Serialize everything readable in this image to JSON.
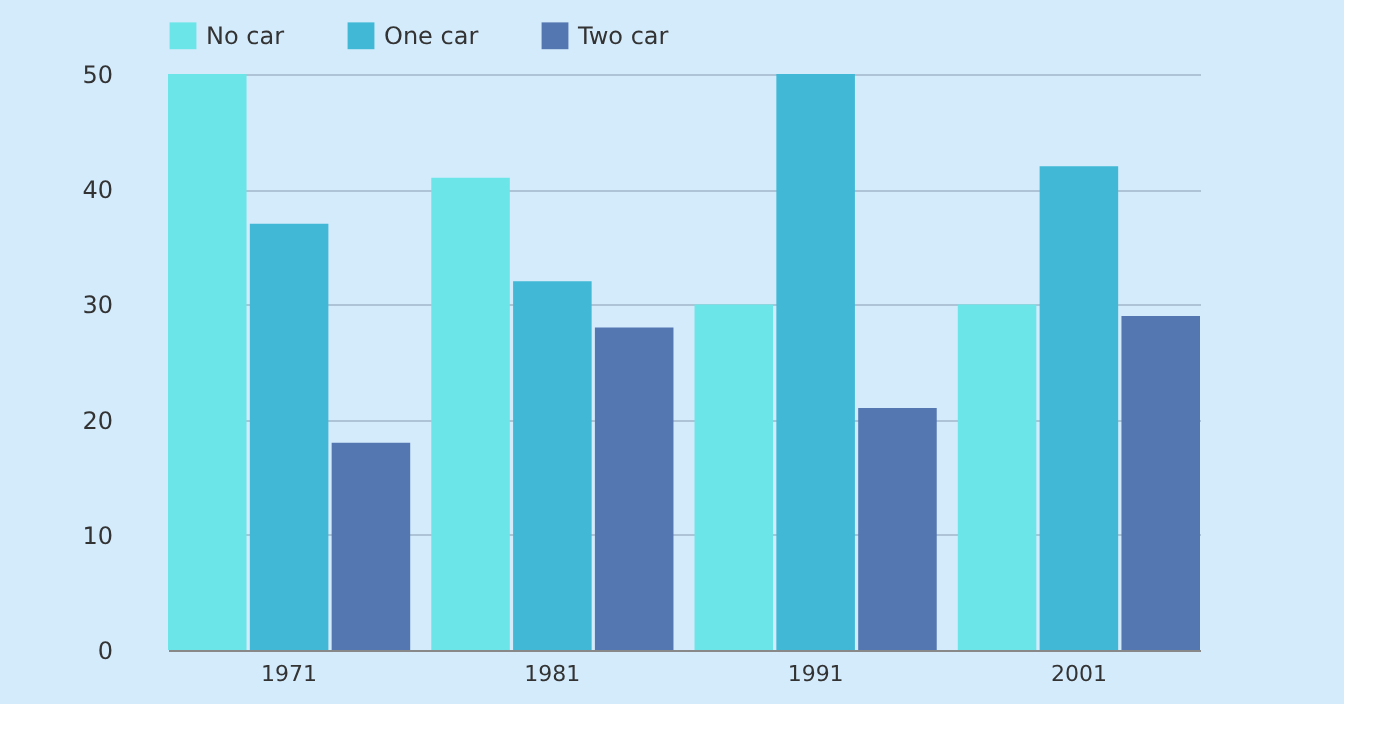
{
  "chart_data": {
    "type": "bar",
    "categories": [
      "1971",
      "1981",
      "1991",
      "2001"
    ],
    "series": [
      {
        "name": "No car",
        "color": "#6ce5e8",
        "values": [
          50,
          41,
          30,
          30
        ]
      },
      {
        "name": "One car",
        "color": "#41b8d5",
        "values": [
          37,
          32,
          50,
          42
        ]
      },
      {
        "name": "Two car",
        "color": "#5577b1",
        "values": [
          18,
          28,
          21,
          29
        ]
      }
    ],
    "ylim": [
      0,
      50
    ],
    "yticks": [
      0,
      10,
      20,
      30,
      40,
      50
    ],
    "grid": "y",
    "legend": "top"
  }
}
